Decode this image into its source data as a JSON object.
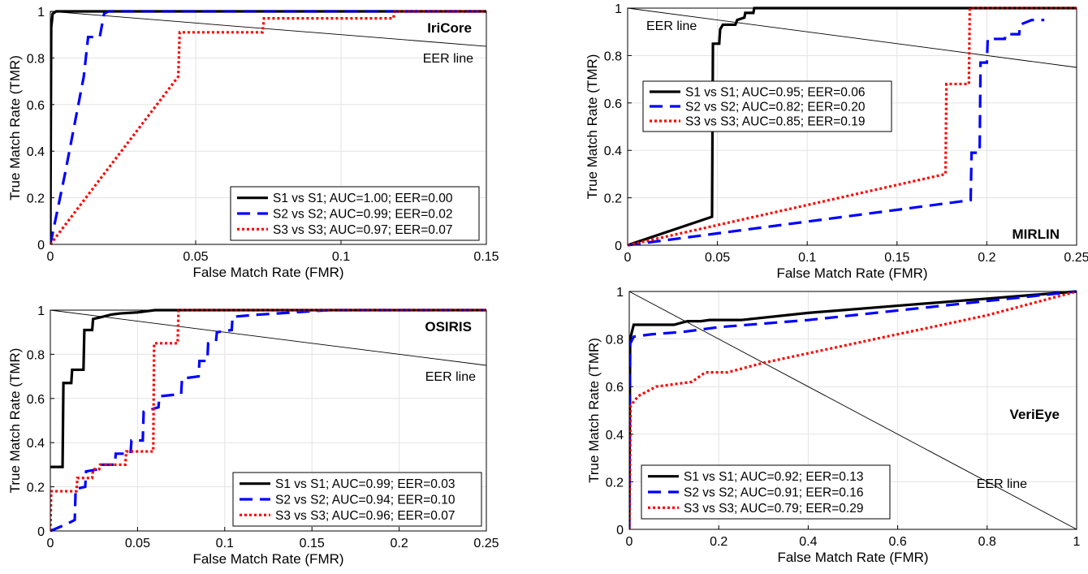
{
  "figure": {
    "eer_line_label": "EER line"
  },
  "chart_data": [
    {
      "type": "line",
      "title": "IriCore",
      "xlabel": "False Match Rate (FMR)",
      "ylabel": "True Match Rate (TMR)",
      "xlim": [
        0,
        0.15
      ],
      "ylim": [
        0,
        1
      ],
      "xticks": [
        "0",
        "0.05",
        "0.1",
        "0.15"
      ],
      "yticks": [
        "0",
        "0.2",
        "0.4",
        "0.6",
        "0.8",
        "1"
      ],
      "grid": true,
      "legend_position": "bottom-right",
      "eer_line": [
        [
          0,
          1
        ],
        [
          0.15,
          0.85
        ]
      ],
      "series": [
        {
          "name": "S1 vs S1; AUC=1.00; EER=0.00",
          "color": "#000000",
          "style": "solid",
          "points": [
            [
              0,
              0
            ],
            [
              0.0003,
              0.93
            ],
            [
              0.0008,
              0.99
            ],
            [
              0.002,
              1.0
            ],
            [
              0.15,
              1.0
            ]
          ]
        },
        {
          "name": "S2 vs S2; AUC=0.99; EER=0.02",
          "color": "#0000ff",
          "style": "dashed",
          "points": [
            [
              0,
              0
            ],
            [
              0.005,
              0.3
            ],
            [
              0.0115,
              0.72
            ],
            [
              0.013,
              0.89
            ],
            [
              0.017,
              0.89
            ],
            [
              0.0185,
              0.99
            ],
            [
              0.02,
              1.0
            ],
            [
              0.15,
              1.0
            ]
          ]
        },
        {
          "name": "S3 vs S3; AUC=0.97; EER=0.07",
          "color": "#ff0000",
          "style": "dotted",
          "points": [
            [
              0,
              0
            ],
            [
              0.044,
              0.72
            ],
            [
              0.0445,
              0.91
            ],
            [
              0.073,
              0.91
            ],
            [
              0.0735,
              0.97
            ],
            [
              0.118,
              0.97
            ],
            [
              0.1185,
              1.0
            ],
            [
              0.15,
              1.0
            ]
          ]
        }
      ]
    },
    {
      "type": "line",
      "title": "MIRLIN",
      "xlabel": "False Match Rate (FMR)",
      "ylabel": "True Match Rate (TMR)",
      "xlim": [
        0,
        0.25
      ],
      "ylim": [
        0,
        1
      ],
      "xticks": [
        "0",
        "0.05",
        "0.1",
        "0.15",
        "0.2",
        "0.25"
      ],
      "yticks": [
        "0",
        "0.2",
        "0.4",
        "0.6",
        "0.8",
        "1"
      ],
      "grid": true,
      "legend_position": "top-left",
      "eer_line": [
        [
          0,
          1
        ],
        [
          0.25,
          0.75
        ]
      ],
      "series": [
        {
          "name": "S1 vs S1; AUC=0.95; EER=0.06",
          "color": "#000000",
          "style": "solid",
          "points": [
            [
              0,
              0
            ],
            [
              0.047,
              0.12
            ],
            [
              0.0475,
              0.85
            ],
            [
              0.051,
              0.85
            ],
            [
              0.0515,
              0.91
            ],
            [
              0.053,
              0.93
            ],
            [
              0.06,
              0.93
            ],
            [
              0.061,
              0.95
            ],
            [
              0.065,
              0.96
            ],
            [
              0.0655,
              0.98
            ],
            [
              0.07,
              0.98
            ],
            [
              0.0705,
              1.0
            ],
            [
              0.25,
              1.0
            ]
          ]
        },
        {
          "name": "S2 vs S2; AUC=0.82; EER=0.20",
          "color": "#0000ff",
          "style": "dashed",
          "points": [
            [
              0,
              0
            ],
            [
              0.191,
              0.19
            ],
            [
              0.1915,
              0.39
            ],
            [
              0.196,
              0.39
            ],
            [
              0.1965,
              0.77
            ],
            [
              0.2,
              0.77
            ],
            [
              0.2005,
              0.87
            ],
            [
              0.21,
              0.87
            ],
            [
              0.2105,
              0.89
            ],
            [
              0.218,
              0.89
            ],
            [
              0.2185,
              0.93
            ],
            [
              0.225,
              0.95
            ],
            [
              0.232,
              0.95
            ]
          ]
        },
        {
          "name": "S3 vs S3; AUC=0.85; EER=0.19",
          "color": "#ff0000",
          "style": "dotted",
          "points": [
            [
              0,
              0
            ],
            [
              0.177,
              0.3
            ],
            [
              0.1775,
              0.68
            ],
            [
              0.19,
              0.68
            ],
            [
              0.1905,
              1.0
            ],
            [
              0.25,
              1.0
            ]
          ]
        }
      ]
    },
    {
      "type": "line",
      "title": "OSIRIS",
      "xlabel": "False Match Rate (FMR)",
      "ylabel": "True Match Rate (TMR)",
      "xlim": [
        0,
        0.25
      ],
      "ylim": [
        0,
        1
      ],
      "xticks": [
        "0",
        "0.05",
        "0.1",
        "0.15",
        "0.2",
        "0.25"
      ],
      "yticks": [
        "0",
        "0.2",
        "0.4",
        "0.6",
        "0.8",
        "1"
      ],
      "grid": true,
      "legend_position": "bottom-right",
      "eer_line": [
        [
          0,
          1
        ],
        [
          0.25,
          0.75
        ]
      ],
      "series": [
        {
          "name": "S1 vs S1; AUC=0.99; EER=0.03",
          "color": "#000000",
          "style": "solid",
          "points": [
            [
              0,
              0.29
            ],
            [
              0.007,
              0.29
            ],
            [
              0.0075,
              0.67
            ],
            [
              0.012,
              0.67
            ],
            [
              0.0125,
              0.73
            ],
            [
              0.019,
              0.73
            ],
            [
              0.0195,
              0.91
            ],
            [
              0.024,
              0.91
            ],
            [
              0.0245,
              0.96
            ],
            [
              0.03,
              0.97
            ],
            [
              0.035,
              0.98
            ],
            [
              0.04,
              0.985
            ],
            [
              0.05,
              0.99
            ],
            [
              0.06,
              1.0
            ],
            [
              0.25,
              1.0
            ]
          ]
        },
        {
          "name": "S2 vs S2; AUC=0.94; EER=0.10",
          "color": "#0000ff",
          "style": "dashed",
          "points": [
            [
              0,
              0
            ],
            [
              0.009,
              0.03
            ],
            [
              0.014,
              0.05
            ],
            [
              0.0145,
              0.19
            ],
            [
              0.02,
              0.2
            ],
            [
              0.0205,
              0.27
            ],
            [
              0.028,
              0.28
            ],
            [
              0.0285,
              0.3
            ],
            [
              0.037,
              0.3
            ],
            [
              0.0375,
              0.35
            ],
            [
              0.046,
              0.35
            ],
            [
              0.0465,
              0.41
            ],
            [
              0.053,
              0.41
            ],
            [
              0.0535,
              0.54
            ],
            [
              0.062,
              0.56
            ],
            [
              0.0625,
              0.61
            ],
            [
              0.075,
              0.62
            ],
            [
              0.0755,
              0.69
            ],
            [
              0.085,
              0.7
            ],
            [
              0.0855,
              0.77
            ],
            [
              0.09,
              0.77
            ],
            [
              0.0905,
              0.85
            ],
            [
              0.095,
              0.86
            ],
            [
              0.0955,
              0.9
            ],
            [
              0.104,
              0.91
            ],
            [
              0.1045,
              0.97
            ],
            [
              0.12,
              0.98
            ],
            [
              0.14,
              0.99
            ],
            [
              0.16,
              1.0
            ],
            [
              0.25,
              1.0
            ]
          ]
        },
        {
          "name": "S3 vs S3; AUC=0.96; EER=0.07",
          "color": "#ff0000",
          "style": "dotted",
          "points": [
            [
              0,
              0
            ],
            [
              0.0005,
              0.18
            ],
            [
              0.015,
              0.18
            ],
            [
              0.0155,
              0.24
            ],
            [
              0.024,
              0.24
            ],
            [
              0.0245,
              0.28
            ],
            [
              0.028,
              0.28
            ],
            [
              0.0285,
              0.3
            ],
            [
              0.043,
              0.3
            ],
            [
              0.0435,
              0.36
            ],
            [
              0.059,
              0.36
            ],
            [
              0.0595,
              0.85
            ],
            [
              0.073,
              0.85
            ],
            [
              0.0735,
              1.0
            ],
            [
              0.25,
              1.0
            ]
          ]
        }
      ]
    },
    {
      "type": "line",
      "title": "VeriEye",
      "xlabel": "False Match Rate (FMR)",
      "ylabel": "True Match Rate (TMR)",
      "xlim": [
        0,
        1
      ],
      "ylim": [
        0,
        1
      ],
      "xticks": [
        "0",
        "0.2",
        "0.4",
        "0.6",
        "0.8",
        "1"
      ],
      "yticks": [
        "0",
        "0.2",
        "0.4",
        "0.6",
        "0.8",
        "1"
      ],
      "grid": true,
      "legend_position": "bottom-left",
      "eer_line": [
        [
          0,
          1
        ],
        [
          1,
          0
        ]
      ],
      "series": [
        {
          "name": "S1 vs S1; AUC=0.92; EER=0.13",
          "color": "#000000",
          "style": "solid",
          "points": [
            [
              0,
              0
            ],
            [
              0.002,
              0.8
            ],
            [
              0.01,
              0.86
            ],
            [
              0.1,
              0.86
            ],
            [
              0.13,
              0.875
            ],
            [
              0.16,
              0.875
            ],
            [
              0.18,
              0.88
            ],
            [
              0.25,
              0.88
            ],
            [
              0.4,
              0.91
            ],
            [
              0.6,
              0.94
            ],
            [
              0.8,
              0.97
            ],
            [
              1.0,
              1.0
            ]
          ]
        },
        {
          "name": "S2 vs S2; AUC=0.91; EER=0.16",
          "color": "#0000ff",
          "style": "dashed",
          "points": [
            [
              0,
              0
            ],
            [
              0.002,
              0.78
            ],
            [
              0.01,
              0.81
            ],
            [
              0.05,
              0.82
            ],
            [
              0.12,
              0.83
            ],
            [
              0.2,
              0.85
            ],
            [
              0.4,
              0.88
            ],
            [
              0.6,
              0.92
            ],
            [
              0.8,
              0.96
            ],
            [
              1.0,
              1.0
            ]
          ]
        },
        {
          "name": "S3 vs S3; AUC=0.79; EER=0.29",
          "color": "#ff0000",
          "style": "dotted",
          "points": [
            [
              0,
              0
            ],
            [
              0.003,
              0.52
            ],
            [
              0.02,
              0.56
            ],
            [
              0.04,
              0.58
            ],
            [
              0.06,
              0.6
            ],
            [
              0.1,
              0.61
            ],
            [
              0.14,
              0.62
            ],
            [
              0.17,
              0.66
            ],
            [
              0.22,
              0.66
            ],
            [
              0.3,
              0.7
            ],
            [
              0.4,
              0.74
            ],
            [
              0.5,
              0.78
            ],
            [
              0.6,
              0.82
            ],
            [
              0.7,
              0.86
            ],
            [
              0.8,
              0.9
            ],
            [
              0.9,
              0.95
            ],
            [
              1.0,
              1.0
            ]
          ]
        }
      ]
    }
  ]
}
